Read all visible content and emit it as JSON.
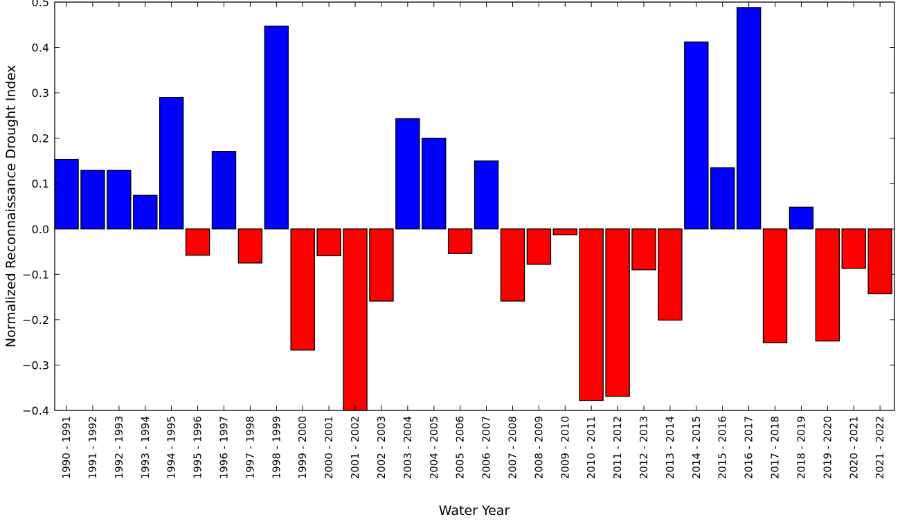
{
  "chart_data": {
    "type": "bar",
    "title": "",
    "xlabel": "Water Year",
    "ylabel": "Normalized Reconnaissance Drought Index",
    "ylim": [
      -0.4,
      0.5
    ],
    "yticks": [
      "0.5",
      "0.4",
      "0.3",
      "0.2",
      "0.1",
      "0.0",
      "−0.1",
      "−0.2",
      "−0.3",
      "−0.4"
    ],
    "ytick_values": [
      0.5,
      0.4,
      0.3,
      0.2,
      0.1,
      0.0,
      -0.1,
      -0.2,
      -0.3,
      -0.4
    ],
    "grid": false,
    "legend": "none",
    "colors": {
      "positive": "#0000ff",
      "negative": "#ff0000",
      "edge": "#000000"
    },
    "categories": [
      "1990 - 1991",
      "1991 - 1992",
      "1992 - 1993",
      "1993 - 1994",
      "1994 - 1995",
      "1995 - 1996",
      "1996 - 1997",
      "1997 - 1998",
      "1998 - 1999",
      "1999 - 2000",
      "2000 - 2001",
      "2001 - 2002",
      "2002 - 2003",
      "2003 - 2004",
      "2004 - 2005",
      "2005 - 2006",
      "2006 - 2007",
      "2007 - 2008",
      "2008 - 2009",
      "2009 - 2010",
      "2010 - 2011",
      "2011 - 2012",
      "2012 - 2013",
      "2013 - 2014",
      "2014 - 2015",
      "2015 - 2016",
      "2016 - 2017",
      "2017 - 2018",
      "2018 - 2019",
      "2019 - 2020",
      "2020 - 2021",
      "2021 - 2022"
    ],
    "values": [
      0.153,
      0.129,
      0.129,
      0.074,
      0.29,
      -0.058,
      0.171,
      -0.075,
      0.447,
      -0.267,
      -0.059,
      -0.4,
      -0.159,
      0.243,
      0.2,
      -0.054,
      0.15,
      -0.159,
      -0.078,
      -0.013,
      -0.378,
      -0.369,
      -0.09,
      -0.201,
      0.412,
      0.135,
      0.488,
      -0.251,
      0.048,
      -0.247,
      -0.087,
      -0.143
    ]
  }
}
